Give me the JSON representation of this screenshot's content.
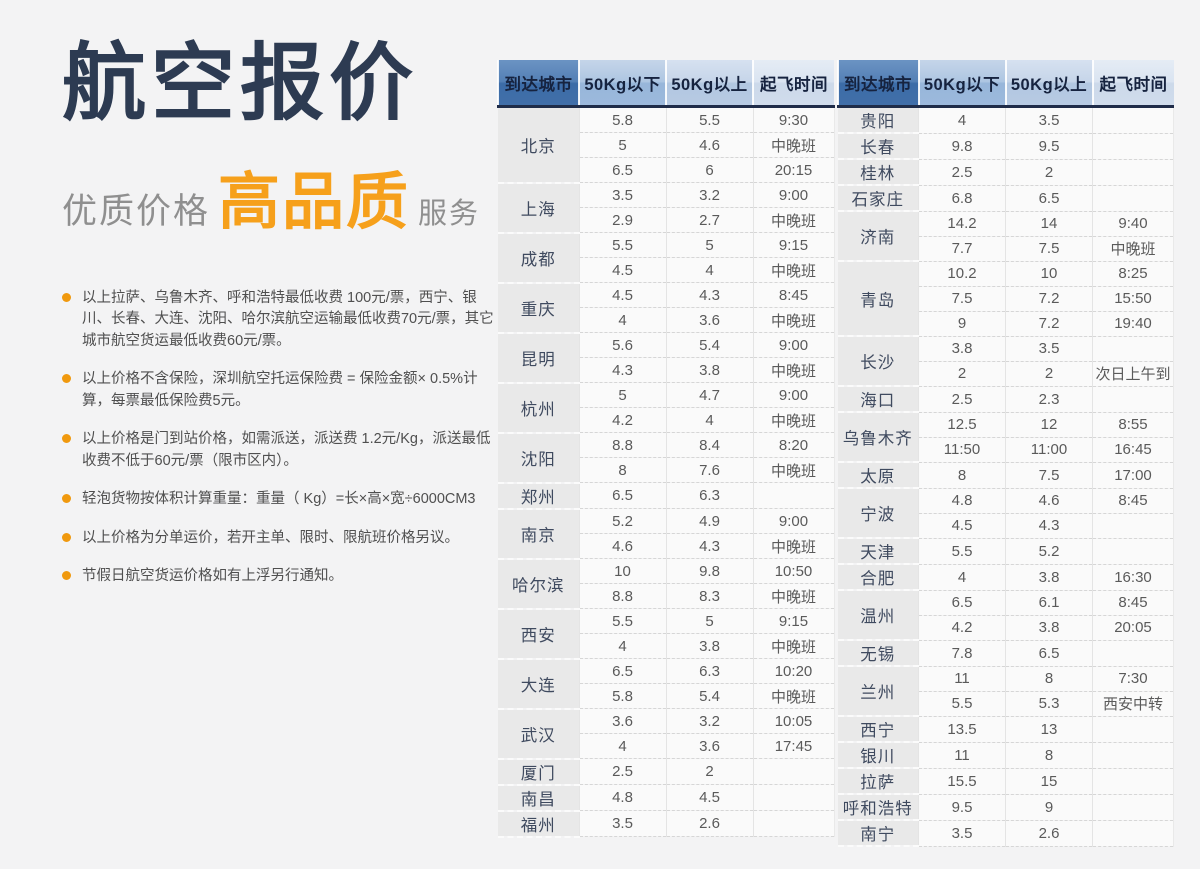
{
  "hero": {
    "title": "航空报价",
    "subtitle": {
      "left": "优质价格",
      "highlight": "高品质",
      "right": "服务"
    }
  },
  "notes": [
    "以上拉萨、乌鲁木齐、呼和浩特最低收费 100元/票，西宁、银川、长春、大连、沈阳、哈尔滨航空运输最低收费70元/票，其它城市航空货运最低收费60元/票。",
    "以上价格不含保险，深圳航空托运保险费 = 保险金额× 0.5%计算，每票最低保险费5元。",
    "以上价格是门到站价格，如需派送，派送费 1.2元/Kg，派送最低收费不低于60元/票（限市区内）。",
    "轻泡货物按体积计算重量：重量（ Kg）=长×高×宽÷6000CM3",
    "以上价格为分单运价，若开主单、限时、限航班价格另议。",
    "节假日航空货运价格如有上浮另行通知。"
  ],
  "table": {
    "headers": [
      "到达城市",
      "50Kg以下",
      "50Kg以上",
      "起飞时间"
    ],
    "header_keys": [
      "destination-city",
      "under-50kg",
      "over-50kg",
      "departure-time"
    ],
    "left_groups": [
      {
        "city": "北京",
        "rows": [
          [
            "5.8",
            "5.5",
            "9:30"
          ],
          [
            "5",
            "4.6",
            "中晚班"
          ],
          [
            "6.5",
            "6",
            "20:15"
          ]
        ]
      },
      {
        "city": "上海",
        "rows": [
          [
            "3.5",
            "3.2",
            "9:00"
          ],
          [
            "2.9",
            "2.7",
            "中晚班"
          ]
        ]
      },
      {
        "city": "成都",
        "rows": [
          [
            "5.5",
            "5",
            "9:15"
          ],
          [
            "4.5",
            "4",
            "中晚班"
          ]
        ]
      },
      {
        "city": "重庆",
        "rows": [
          [
            "4.5",
            "4.3",
            "8:45"
          ],
          [
            "4",
            "3.6",
            "中晚班"
          ]
        ]
      },
      {
        "city": "昆明",
        "rows": [
          [
            "5.6",
            "5.4",
            "9:00"
          ],
          [
            "4.3",
            "3.8",
            "中晚班"
          ]
        ]
      },
      {
        "city": "杭州",
        "rows": [
          [
            "5",
            "4.7",
            "9:00"
          ],
          [
            "4.2",
            "4",
            "中晚班"
          ]
        ]
      },
      {
        "city": "沈阳",
        "rows": [
          [
            "8.8",
            "8.4",
            "8:20"
          ],
          [
            "8",
            "7.6",
            "中晚班"
          ]
        ]
      },
      {
        "city": "郑州",
        "rows": [
          [
            "6.5",
            "6.3",
            ""
          ]
        ]
      },
      {
        "city": "南京",
        "rows": [
          [
            "5.2",
            "4.9",
            "9:00"
          ],
          [
            "4.6",
            "4.3",
            "中晚班"
          ]
        ]
      },
      {
        "city": "哈尔滨",
        "rows": [
          [
            "10",
            "9.8",
            "10:50"
          ],
          [
            "8.8",
            "8.3",
            "中晚班"
          ]
        ]
      },
      {
        "city": "西安",
        "rows": [
          [
            "5.5",
            "5",
            "9:15"
          ],
          [
            "4",
            "3.8",
            "中晚班"
          ]
        ]
      },
      {
        "city": "大连",
        "rows": [
          [
            "6.5",
            "6.3",
            "10:20"
          ],
          [
            "5.8",
            "5.4",
            "中晚班"
          ]
        ]
      },
      {
        "city": "武汉",
        "rows": [
          [
            "3.6",
            "3.2",
            "10:05"
          ],
          [
            "4",
            "3.6",
            "17:45"
          ]
        ]
      },
      {
        "city": "厦门",
        "rows": [
          [
            "2.5",
            "2",
            ""
          ]
        ]
      },
      {
        "city": "南昌",
        "rows": [
          [
            "4.8",
            "4.5",
            ""
          ]
        ]
      },
      {
        "city": "福州",
        "rows": [
          [
            "3.5",
            "2.6",
            ""
          ]
        ]
      }
    ],
    "right_groups": [
      {
        "city": "贵阳",
        "rows": [
          [
            "4",
            "3.5",
            ""
          ]
        ]
      },
      {
        "city": "长春",
        "rows": [
          [
            "9.8",
            "9.5",
            ""
          ]
        ]
      },
      {
        "city": "桂林",
        "rows": [
          [
            "2.5",
            "2",
            ""
          ]
        ]
      },
      {
        "city": "石家庄",
        "rows": [
          [
            "6.8",
            "6.5",
            ""
          ]
        ]
      },
      {
        "city": "济南",
        "rows": [
          [
            "14.2",
            "14",
            "9:40"
          ],
          [
            "7.7",
            "7.5",
            "中晚班"
          ]
        ]
      },
      {
        "city": "青岛",
        "rows": [
          [
            "10.2",
            "10",
            "8:25"
          ],
          [
            "7.5",
            "7.2",
            "15:50"
          ],
          [
            "9",
            "7.2",
            "19:40"
          ]
        ]
      },
      {
        "city": "长沙",
        "rows": [
          [
            "3.8",
            "3.5",
            ""
          ],
          [
            "2",
            "2",
            "次日上午到"
          ]
        ]
      },
      {
        "city": "海口",
        "rows": [
          [
            "2.5",
            "2.3",
            ""
          ]
        ]
      },
      {
        "city": "乌鲁木齐",
        "rows": [
          [
            "12.5",
            "12",
            "8:55"
          ],
          [
            "11:50",
            "11:00",
            "16:45"
          ]
        ]
      },
      {
        "city": "太原",
        "rows": [
          [
            "8",
            "7.5",
            "17:00"
          ]
        ]
      },
      {
        "city": "宁波",
        "rows": [
          [
            "4.8",
            "4.6",
            "8:45"
          ],
          [
            "4.5",
            "4.3",
            ""
          ]
        ]
      },
      {
        "city": "天津",
        "rows": [
          [
            "5.5",
            "5.2",
            ""
          ]
        ]
      },
      {
        "city": "合肥",
        "rows": [
          [
            "4",
            "3.8",
            "16:30"
          ]
        ]
      },
      {
        "city": "温州",
        "rows": [
          [
            "6.5",
            "6.1",
            "8:45"
          ],
          [
            "4.2",
            "3.8",
            "20:05"
          ]
        ]
      },
      {
        "city": "无锡",
        "rows": [
          [
            "7.8",
            "6.5",
            ""
          ]
        ]
      },
      {
        "city": "兰州",
        "rows": [
          [
            "11",
            "8",
            "7:30"
          ],
          [
            "5.5",
            "5.3",
            "西安中转"
          ]
        ]
      },
      {
        "city": "西宁",
        "rows": [
          [
            "13.5",
            "13",
            ""
          ]
        ]
      },
      {
        "city": "银川",
        "rows": [
          [
            "11",
            "8",
            ""
          ]
        ]
      },
      {
        "city": "拉萨",
        "rows": [
          [
            "15.5",
            "15",
            ""
          ]
        ]
      },
      {
        "city": "呼和浩特",
        "rows": [
          [
            "9.5",
            "9",
            ""
          ]
        ]
      },
      {
        "city": "南宁",
        "rows": [
          [
            "3.5",
            "2.6",
            ""
          ]
        ]
      }
    ]
  },
  "colors": {
    "accent_orange": "#F6A01B",
    "bullet_orange": "#F0990E",
    "title_navy": "#2D3B52",
    "header_text_navy": "#16233F",
    "header_col1_blue": "#416FA9",
    "page_background": "#F3F3F4"
  }
}
